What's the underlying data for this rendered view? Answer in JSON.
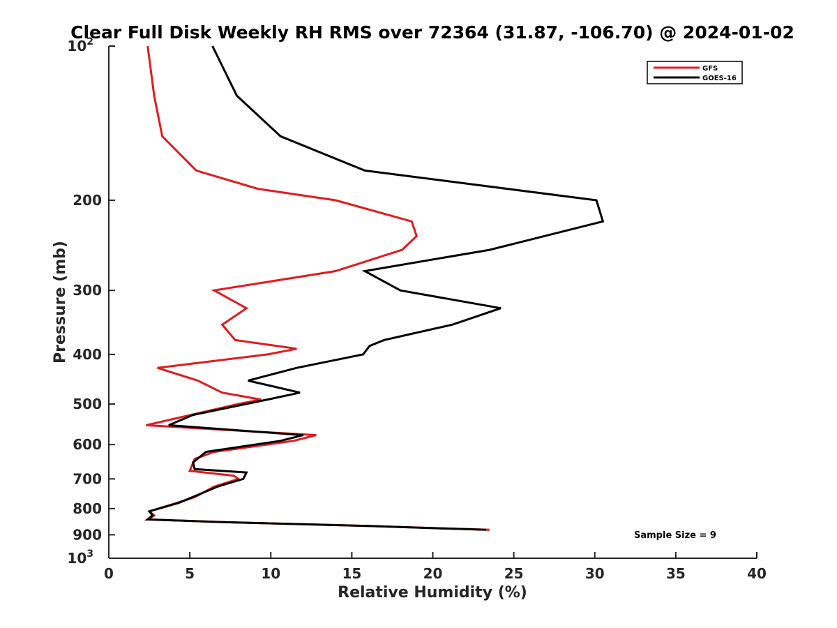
{
  "chart_data": {
    "type": "line",
    "title": "Clear Full Disk Weekly RH RMS over 72364 (31.87, -106.70) @ 2024-01-02",
    "xlabel": "Relative Humidity (%)",
    "ylabel": "Pressure (mb)",
    "xlim": [
      0,
      40
    ],
    "ylim": [
      100,
      1000
    ],
    "y_scale": "log",
    "y_reversed": true,
    "x_ticks": [
      "0",
      "5",
      "10",
      "15",
      "20",
      "25",
      "30",
      "35",
      "40"
    ],
    "y_ticks": [
      {
        "value": 100,
        "base": "10",
        "exp": "2"
      },
      {
        "value": 200,
        "label": "200"
      },
      {
        "value": 300,
        "label": "300"
      },
      {
        "value": 400,
        "label": "400"
      },
      {
        "value": 500,
        "label": "500"
      },
      {
        "value": 600,
        "label": "600"
      },
      {
        "value": 700,
        "label": "700"
      },
      {
        "value": 800,
        "label": "800"
      },
      {
        "value": 900,
        "label": "900"
      },
      {
        "value": 1000,
        "base": "10",
        "exp": "3"
      }
    ],
    "grid": false,
    "legend_position": "top-right",
    "series": [
      {
        "name": "GFS",
        "color": "#e41a1c",
        "points": [
          [
            2.4,
            100
          ],
          [
            2.8,
            125
          ],
          [
            3.3,
            150
          ],
          [
            5.4,
            175
          ],
          [
            9.2,
            190
          ],
          [
            14.0,
            200
          ],
          [
            18.7,
            220
          ],
          [
            19.0,
            235
          ],
          [
            18.1,
            250
          ],
          [
            14.0,
            275
          ],
          [
            6.5,
            300
          ],
          [
            8.5,
            325
          ],
          [
            7.0,
            350
          ],
          [
            7.8,
            375
          ],
          [
            11.6,
            390
          ],
          [
            9.8,
            400
          ],
          [
            3.0,
            425
          ],
          [
            5.5,
            450
          ],
          [
            7.0,
            475
          ],
          [
            9.4,
            490
          ],
          [
            8.0,
            500
          ],
          [
            2.3,
            550
          ],
          [
            12.8,
            575
          ],
          [
            11.4,
            590
          ],
          [
            6.5,
            620
          ],
          [
            5.3,
            640
          ],
          [
            5.0,
            675
          ],
          [
            7.7,
            690
          ],
          [
            8.0,
            700
          ],
          [
            6.5,
            725
          ],
          [
            5.3,
            760
          ],
          [
            4.2,
            780
          ],
          [
            2.5,
            810
          ],
          [
            2.8,
            825
          ],
          [
            2.4,
            840
          ],
          [
            7.0,
            850
          ],
          [
            16.0,
            865
          ],
          [
            23.5,
            880
          ]
        ]
      },
      {
        "name": "GOES-16",
        "color": "#000000",
        "points": [
          [
            6.4,
            100
          ],
          [
            7.9,
            125
          ],
          [
            10.6,
            150
          ],
          [
            15.8,
            175
          ],
          [
            30.1,
            200
          ],
          [
            30.5,
            220
          ],
          [
            23.5,
            250
          ],
          [
            15.8,
            275
          ],
          [
            18.0,
            300
          ],
          [
            24.2,
            325
          ],
          [
            21.2,
            350
          ],
          [
            17.0,
            375
          ],
          [
            16.1,
            385
          ],
          [
            15.7,
            400
          ],
          [
            11.6,
            425
          ],
          [
            8.6,
            450
          ],
          [
            11.8,
            475
          ],
          [
            9.8,
            490
          ],
          [
            5.2,
            525
          ],
          [
            3.7,
            550
          ],
          [
            12.0,
            575
          ],
          [
            10.6,
            590
          ],
          [
            6.0,
            620
          ],
          [
            5.2,
            650
          ],
          [
            5.3,
            670
          ],
          [
            8.5,
            680
          ],
          [
            8.3,
            700
          ],
          [
            6.7,
            725
          ],
          [
            5.6,
            750
          ],
          [
            4.3,
            780
          ],
          [
            2.5,
            810
          ],
          [
            2.7,
            825
          ],
          [
            2.4,
            840
          ],
          [
            7.0,
            850
          ],
          [
            16.0,
            865
          ],
          [
            23.3,
            880
          ]
        ]
      }
    ],
    "annotation": "Sample Size = 9"
  }
}
